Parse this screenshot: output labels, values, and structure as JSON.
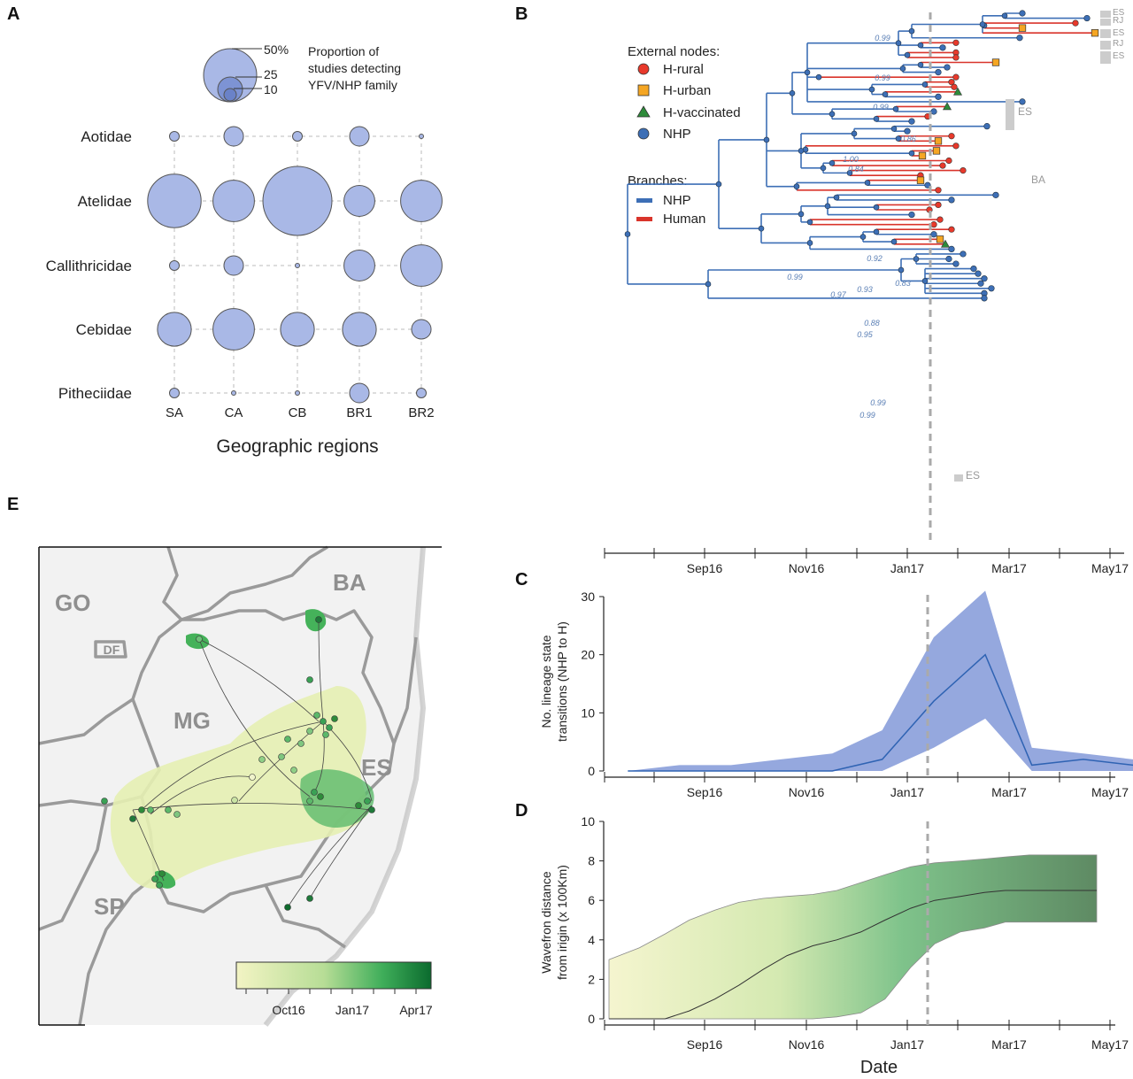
{
  "panels": {
    "a": {
      "letter": "A"
    },
    "b": {
      "letter": "B"
    },
    "c": {
      "letter": "C"
    },
    "d": {
      "letter": "D"
    },
    "e": {
      "letter": "E"
    }
  },
  "colors": {
    "nhp": "#3d6fb6",
    "human": "#d9342b",
    "bubble": "#a9b8e6",
    "band_c": "#8fa3dc",
    "rural": "#e8392b",
    "urban": "#f5a623",
    "vaccinated": "#2e8b3a"
  },
  "chart_data": [
    {
      "id": "A",
      "type": "bubble",
      "xlabel": "Geographic regions",
      "categories_x": [
        "SA",
        "CA",
        "CB",
        "BR1",
        "BR2"
      ],
      "categories_y": [
        "Aotidae",
        "Atelidae",
        "Callithricidae",
        "Cebidae",
        "Pitheciidae"
      ],
      "size_legend": {
        "values": [
          "50%",
          "25",
          "10"
        ],
        "levels": [
          50,
          25,
          10
        ],
        "caption": [
          "Proportion of",
          "studies detecting",
          "YFV/NHP family"
        ]
      },
      "values": [
        [
          1,
          4,
          1,
          4,
          0
        ],
        [
          30,
          18,
          50,
          10,
          18
        ],
        [
          1,
          4,
          0,
          10,
          18
        ],
        [
          12,
          18,
          12,
          12,
          4
        ],
        [
          1,
          0,
          0,
          4,
          1
        ]
      ]
    },
    {
      "id": "B",
      "type": "tree",
      "legend": {
        "external_title": "External nodes:",
        "external": [
          "H-rural",
          "H-urban",
          "H-vaccinated",
          "NHP"
        ],
        "branches_title": "Branches:",
        "branches": [
          "NHP",
          "Human"
        ]
      },
      "support_values": [
        "0.99",
        "0.99",
        "0.99",
        "0.86",
        "1.00",
        "0.84",
        "0.92",
        "0.99",
        "0.93",
        "0.83",
        "0.97",
        "0.88",
        "0.95",
        "0.99",
        "0.99"
      ],
      "tip_states": [
        "ES",
        "RJ",
        "ES",
        "RJ",
        "ES",
        "ES",
        "BA",
        "ES"
      ],
      "x_ticks": [
        "Sep16",
        "Nov16",
        "Jan17",
        "Mar17",
        "May17"
      ]
    },
    {
      "id": "C",
      "type": "area",
      "ylabel": [
        "No. lineage state",
        "transitions (NHP to H)"
      ],
      "x_ticks": [
        "Sep16",
        "Nov16",
        "Jan17",
        "Mar17",
        "May17"
      ],
      "ylim": [
        0,
        30
      ],
      "y_ticks": [
        0,
        10,
        20,
        30
      ],
      "x": [
        "2016-07-15",
        "2016-08-15",
        "2016-09-15",
        "2016-10-15",
        "2016-11-15",
        "2016-12-15",
        "2017-01-15",
        "2017-02-15",
        "2017-03-15",
        "2017-04-15",
        "2017-05-15"
      ],
      "mean": [
        0,
        0,
        0,
        0,
        0,
        2,
        12,
        20,
        1,
        2,
        1
      ],
      "lower": [
        0,
        0,
        0,
        0,
        0,
        0,
        4,
        9,
        0,
        0,
        0
      ],
      "upper": [
        0,
        1,
        1,
        2,
        3,
        7,
        23,
        31,
        4,
        3,
        2
      ]
    },
    {
      "id": "D",
      "type": "area",
      "ylabel": [
        "Wavefron distance",
        "from irigin (x 100Km)"
      ],
      "xlabel": "Date",
      "x_ticks": [
        "Sep16",
        "Nov16",
        "Jan17",
        "Mar17",
        "May17"
      ],
      "ylim": [
        0,
        10
      ],
      "y_ticks": [
        0,
        2,
        4,
        6,
        8,
        10
      ],
      "x": [
        "2016-07-01",
        "2016-07-20",
        "2016-08-05",
        "2016-08-20",
        "2016-09-05",
        "2016-09-20",
        "2016-10-05",
        "2016-10-20",
        "2016-11-05",
        "2016-11-20",
        "2016-12-05",
        "2016-12-20",
        "2017-01-05",
        "2017-01-20",
        "2017-02-05",
        "2017-02-20",
        "2017-03-05",
        "2017-03-20",
        "2017-04-05",
        "2017-04-20",
        "2017-05-01"
      ],
      "mean": [
        0,
        0,
        0,
        0.4,
        1.0,
        1.7,
        2.5,
        3.2,
        3.7,
        4.0,
        4.4,
        5.0,
        5.6,
        6.0,
        6.2,
        6.4,
        6.5,
        6.5,
        6.5,
        6.5,
        6.5
      ],
      "lower": [
        0,
        0,
        0,
        0,
        0,
        0,
        0,
        0,
        0,
        0.1,
        0.3,
        1.0,
        2.6,
        3.8,
        4.4,
        4.6,
        4.9,
        4.9,
        4.9,
        4.9,
        4.9
      ],
      "upper": [
        3.0,
        3.6,
        4.3,
        5.0,
        5.5,
        5.9,
        6.1,
        6.2,
        6.3,
        6.5,
        6.9,
        7.3,
        7.7,
        7.9,
        8.0,
        8.1,
        8.2,
        8.3,
        8.3,
        8.3,
        8.3
      ]
    },
    {
      "id": "E",
      "type": "map",
      "states": [
        "GO",
        "DF",
        "MG",
        "BA",
        "ES",
        "SP"
      ],
      "colorbar_ticks": [
        "Oct16",
        "Jan17",
        "Apr17"
      ]
    }
  ]
}
